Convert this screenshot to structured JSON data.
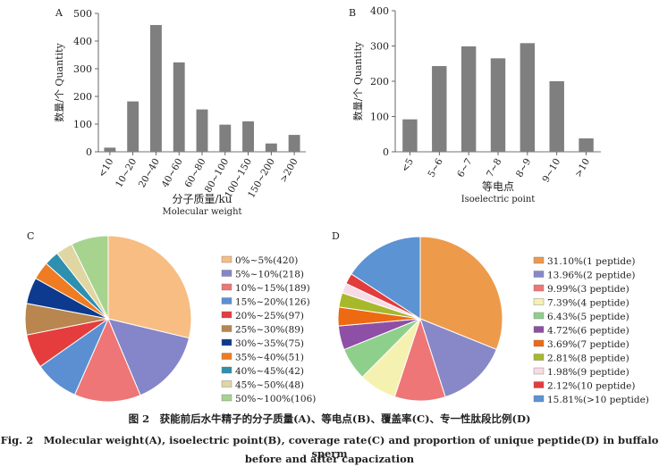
{
  "chart_data": [
    {
      "panel": "A",
      "type": "bar",
      "categories": [
        "<10",
        "10~20",
        "20~40",
        "40~60",
        "60~80",
        "80~100",
        "100~150",
        "150~200",
        ">200"
      ],
      "values": [
        15,
        182,
        458,
        323,
        153,
        98,
        110,
        30,
        61
      ],
      "ylabel": "数量/个 Quantity",
      "xlabel": "分子质量/ku",
      "xlabel2": "Molecular weight",
      "ylim": [
        0,
        500
      ],
      "yticks": [
        0,
        100,
        200,
        300,
        400,
        500
      ],
      "bar_color": "#7f7f7f"
    },
    {
      "panel": "B",
      "type": "bar",
      "categories": [
        "<5",
        "5~6",
        "6~7",
        "7~8",
        "8~9",
        "9~10",
        ">10"
      ],
      "values": [
        92,
        243,
        299,
        265,
        308,
        200,
        38
      ],
      "ylabel": "数量/个 Quantity",
      "xlabel": "等电点",
      "xlabel2": "Isoelectric point",
      "ylim": [
        0,
        400
      ],
      "yticks": [
        0,
        100,
        200,
        300,
        400
      ],
      "bar_color": "#7f7f7f"
    },
    {
      "panel": "C",
      "type": "pie",
      "legend_position": "right",
      "slices": [
        {
          "label": "0%~5%(420)",
          "value": 420,
          "color": "#f7bd82"
        },
        {
          "label": "5%~10%(218)",
          "value": 218,
          "color": "#8585c9"
        },
        {
          "label": "10%~15%(189)",
          "value": 189,
          "color": "#ee7676"
        },
        {
          "label": "15%~20%(126)",
          "value": 126,
          "color": "#5b8fd2"
        },
        {
          "label": "20%~25%(97)",
          "value": 97,
          "color": "#e53d3d"
        },
        {
          "label": "25%~30%(89)",
          "value": 89,
          "color": "#b8864e"
        },
        {
          "label": "30%~35%(75)",
          "value": 75,
          "color": "#0d3a8e"
        },
        {
          "label": "35%~40%(51)",
          "value": 51,
          "color": "#ef7b22"
        },
        {
          "label": "40%~45%(42)",
          "value": 42,
          "color": "#2f8fae"
        },
        {
          "label": "45%~50%(48)",
          "value": 48,
          "color": "#e0d6a2"
        },
        {
          "label": "50%~100%(106)",
          "value": 106,
          "color": "#a6d48f"
        }
      ]
    },
    {
      "panel": "D",
      "type": "pie",
      "legend_position": "right",
      "slices": [
        {
          "label": "31.10%(1 peptide)",
          "value": 31.1,
          "color": "#ed9a4b"
        },
        {
          "label": "13.96%(2 peptide)",
          "value": 13.96,
          "color": "#8888c8"
        },
        {
          "label": "9.99%(3 peptide)",
          "value": 9.99,
          "color": "#ee7676"
        },
        {
          "label": "7.39%(4 peptide)",
          "value": 7.39,
          "color": "#f5f1b0"
        },
        {
          "label": "6.43%(5 peptide)",
          "value": 6.43,
          "color": "#8fcf8c"
        },
        {
          "label": "4.72%(6 peptide)",
          "value": 4.72,
          "color": "#8e4fa6"
        },
        {
          "label": "3.69%(7 peptide)",
          "value": 3.69,
          "color": "#ee6a12"
        },
        {
          "label": "2.81%(8 peptide)",
          "value": 2.81,
          "color": "#a7b82b"
        },
        {
          "label": "1.98%(9 peptide)",
          "value": 1.98,
          "color": "#f8dce5"
        },
        {
          "label": "2.12%(10 peptide)",
          "value": 2.12,
          "color": "#e33c3c"
        },
        {
          "label": "15.81%(>10 peptide)",
          "value": 15.81,
          "color": "#5b93d3"
        }
      ]
    }
  ],
  "caption": {
    "zh": "图 2　获能前后水牛精子的分子质量(A)、等电点(B)、覆盖率(C)、专一性肽段比例(D)",
    "en_line1": "Fig. 2　Molecular weight(A), isoelectric point(B), coverage rate(C) and proportion of unique peptide(D) in buffalo sperm",
    "en_line2": "before and after capacization"
  }
}
